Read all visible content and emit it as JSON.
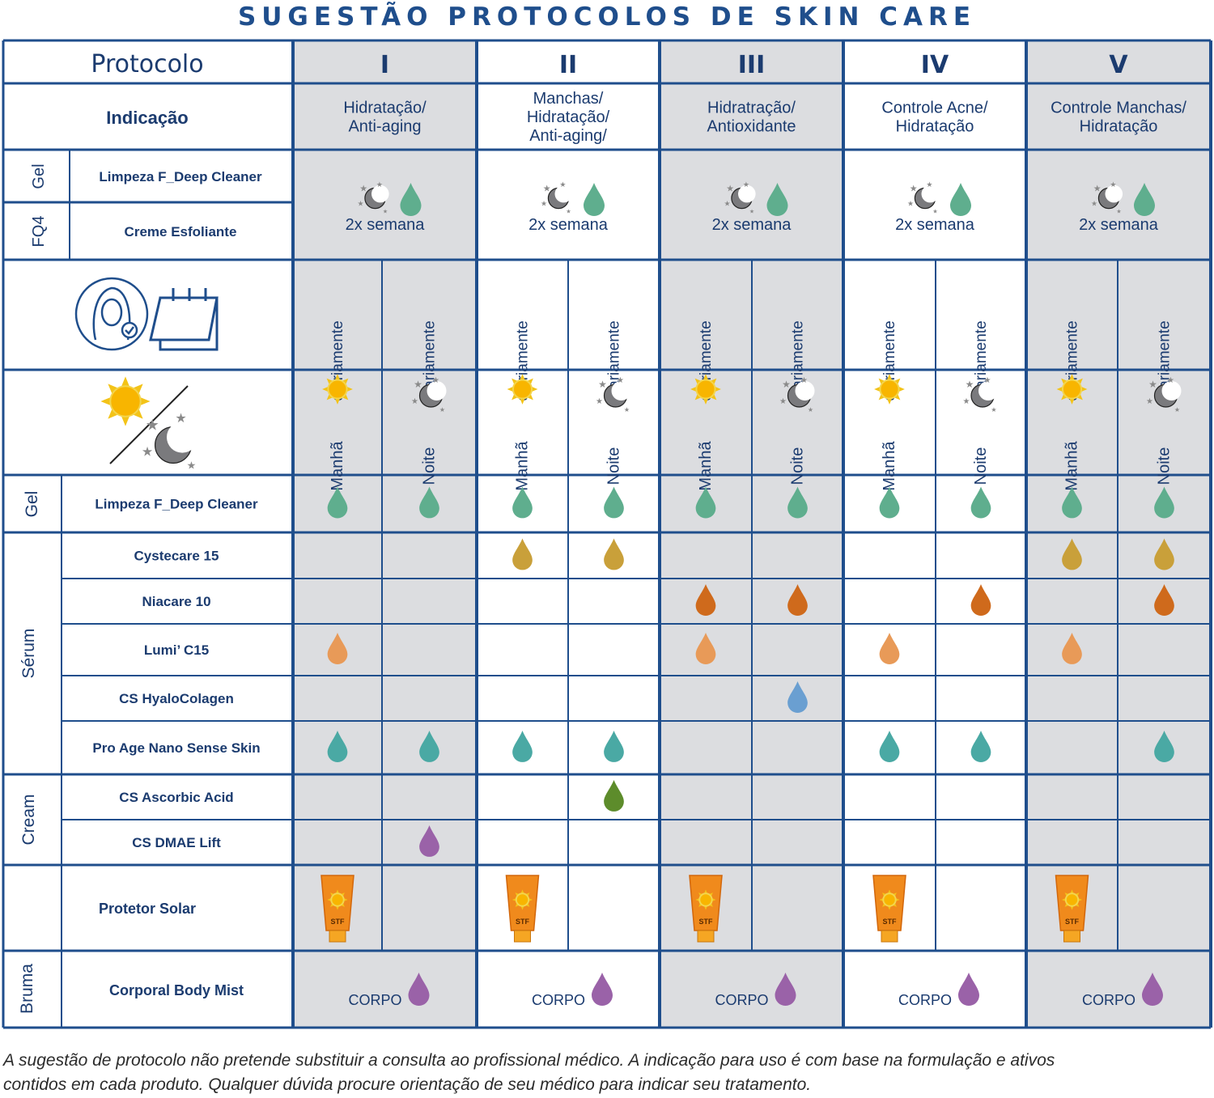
{
  "title": "SUGESTÃO PROTOCOLOS DE SKIN CARE",
  "header": {
    "protocol_label": "Protocolo",
    "indication_label": "Indicação"
  },
  "protocols": [
    {
      "numeral": "I",
      "indication": [
        "Hidratação/",
        "Anti-aging"
      ]
    },
    {
      "numeral": "II",
      "indication": [
        "Manchas/",
        "Hidratação/",
        "Anti-aging/"
      ]
    },
    {
      "numeral": "III",
      "indication": [
        "Hidratração/",
        "Antioxidante"
      ]
    },
    {
      "numeral": "IV",
      "indication": [
        "Controle Acne/",
        "Hidratação"
      ]
    },
    {
      "numeral": "V",
      "indication": [
        "Controle Manchas/",
        "Hidratação"
      ]
    }
  ],
  "weekly": {
    "category_gel": "Gel",
    "category_fq4": "FQ4",
    "products": [
      "Limpeza  F_Deep Cleaner",
      "Creme Esfoliante"
    ],
    "frequency": "2x semana"
  },
  "daily_label": "diariamente",
  "periods": {
    "morning": "Manhã",
    "night": "Noite"
  },
  "sections": [
    {
      "category": "Gel",
      "rows": [
        {
          "name": "Limpeza  F_Deep Cleaner",
          "drop": "green",
          "cols": [
            1,
            1,
            1,
            1,
            1,
            1,
            1,
            1,
            1,
            1
          ]
        }
      ]
    },
    {
      "category": "Sérum",
      "rows": [
        {
          "name": "Cystecare 15",
          "drop": "gold",
          "cols": [
            0,
            0,
            1,
            1,
            0,
            0,
            0,
            0,
            1,
            1
          ]
        },
        {
          "name": "Niacare 10",
          "drop": "dark-orange",
          "cols": [
            0,
            0,
            0,
            0,
            1,
            1,
            0,
            1,
            0,
            1
          ]
        },
        {
          "name": "Lumi’ C15",
          "drop": "orange",
          "cols": [
            1,
            0,
            0,
            0,
            1,
            0,
            1,
            0,
            1,
            0
          ]
        },
        {
          "name": "CS HyaloColagen",
          "drop": "blue",
          "cols": [
            0,
            0,
            0,
            0,
            0,
            1,
            0,
            0,
            0,
            0
          ]
        },
        {
          "name": "Pro Age Nano Sense Skin",
          "drop": "teal",
          "cols": [
            1,
            1,
            1,
            1,
            0,
            0,
            1,
            1,
            0,
            1
          ]
        }
      ]
    },
    {
      "category": "Cream",
      "rows": [
        {
          "name": "CS Ascorbic Acid",
          "drop": "olive",
          "cols": [
            0,
            0,
            0,
            1,
            0,
            0,
            0,
            0,
            0,
            0
          ]
        },
        {
          "name": "CS DMAE Lift",
          "drop": "purple",
          "cols": [
            0,
            1,
            0,
            0,
            0,
            0,
            0,
            0,
            0,
            0
          ]
        }
      ]
    }
  ],
  "sunscreen": {
    "name": "Protetor Solar",
    "label": "STF",
    "cols": [
      1,
      0,
      1,
      0,
      1,
      0,
      1,
      0,
      1,
      0
    ]
  },
  "mist": {
    "category": "Bruma",
    "name": "Corporal Body Mist",
    "label": "CORPO"
  },
  "drop_colors": {
    "green": "#5fae8e",
    "gold": "#c9a03a",
    "dark-orange": "#cf6a1c",
    "orange": "#e89a58",
    "blue": "#6a9fd1",
    "teal": "#4aa9a4",
    "olive": "#5d8c2b",
    "purple": "#9a62a8"
  },
  "colors": {
    "border": "#1f4e8c",
    "shaded": "#dcdde0",
    "text": "#1b3b6f"
  },
  "footnote": [
    "A sugestão de protocolo não pretende substituir a consulta ao profissional médico. A indicação para uso é com base  na formulação e ativos",
    "contidos em cada produto. Qualquer dúvida procure orientação de seu médico para indicar seu tratamento."
  ]
}
